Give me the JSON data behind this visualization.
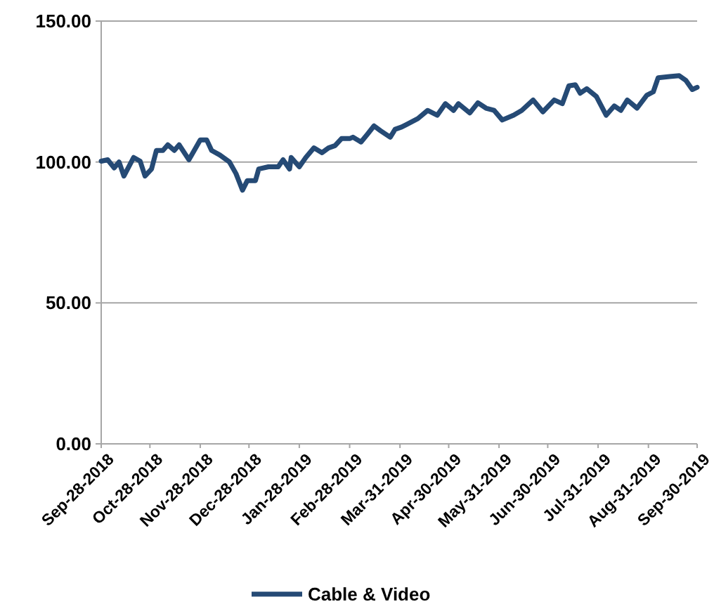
{
  "chart_data": {
    "type": "line",
    "x": [
      "2018-09-28",
      "2018-10-02",
      "2018-10-06",
      "2018-10-09",
      "2018-10-12",
      "2018-10-18",
      "2018-10-22",
      "2018-10-25",
      "2018-10-29",
      "2018-11-01",
      "2018-11-05",
      "2018-11-08",
      "2018-11-12",
      "2018-11-15",
      "2018-11-21",
      "2018-11-23",
      "2018-11-28",
      "2018-12-02",
      "2018-12-05",
      "2018-12-10",
      "2018-12-16",
      "2018-12-20",
      "2018-12-24",
      "2018-12-27",
      "2019-01-01",
      "2019-01-03",
      "2019-01-09",
      "2019-01-15",
      "2019-01-18",
      "2019-01-22",
      "2019-01-23",
      "2019-01-28",
      "2019-02-01",
      "2019-02-06",
      "2019-02-11",
      "2019-02-15",
      "2019-02-19",
      "2019-02-23",
      "2019-02-28",
      "2019-03-02",
      "2019-03-07",
      "2019-03-11",
      "2019-03-15",
      "2019-03-19",
      "2019-03-25",
      "2019-03-28",
      "2019-04-01",
      "2019-04-04",
      "2019-04-11",
      "2019-04-17",
      "2019-04-23",
      "2019-04-28",
      "2019-05-03",
      "2019-05-06",
      "2019-05-13",
      "2019-05-18",
      "2019-05-23",
      "2019-05-28",
      "2019-06-02",
      "2019-06-09",
      "2019-06-14",
      "2019-06-21",
      "2019-06-27",
      "2019-07-04",
      "2019-07-09",
      "2019-07-13",
      "2019-07-17",
      "2019-07-20",
      "2019-07-24",
      "2019-07-30",
      "2019-08-05",
      "2019-08-10",
      "2019-08-14",
      "2019-08-18",
      "2019-08-24",
      "2019-08-30",
      "2019-09-03",
      "2019-09-06",
      "2019-09-13",
      "2019-09-19",
      "2019-09-23",
      "2019-09-27",
      "2019-09-30"
    ],
    "series": [
      {
        "name": "Cable & Video",
        "color": "#254a75",
        "values": [
          100.3,
          100.8,
          97.9,
          100,
          95,
          101.6,
          100.3,
          95,
          97.5,
          104.1,
          104.1,
          106.1,
          104.1,
          106.1,
          100.8,
          102.8,
          107.8,
          107.8,
          104.1,
          102.5,
          100,
          95.9,
          90,
          93.4,
          93.4,
          97.5,
          98.3,
          98.3,
          100.8,
          97.5,
          101.6,
          98.3,
          101.6,
          105,
          103.3,
          105,
          105.8,
          108.3,
          108.3,
          108.8,
          107.1,
          109.9,
          112.8,
          111.1,
          108.8,
          111.6,
          112.4,
          113.3,
          115.4,
          118.3,
          116.6,
          120.7,
          118.3,
          120.7,
          117.4,
          121,
          119.1,
          118.3,
          114.9,
          116.6,
          118.3,
          122,
          117.8,
          122,
          120.7,
          127,
          127.4,
          124.4,
          126,
          123.2,
          116.6,
          119.9,
          118.3,
          122,
          119.1,
          123.7,
          124.9,
          129.9,
          130.3,
          130.6,
          129,
          125.7,
          126.5
        ]
      }
    ],
    "xlim": [
      "2018-09-28",
      "2019-09-30"
    ],
    "xticks": [
      {
        "value": "2018-09-28",
        "label": "Sep-28-2018"
      },
      {
        "value": "2018-10-28",
        "label": "Oct-28-2018"
      },
      {
        "value": "2018-11-28",
        "label": "Nov-28-2018"
      },
      {
        "value": "2018-12-28",
        "label": "Dec-28-2018"
      },
      {
        "value": "2019-01-28",
        "label": "Jan-28-2019"
      },
      {
        "value": "2019-02-28",
        "label": "Feb-28-2019"
      },
      {
        "value": "2019-03-31",
        "label": "Mar-31-2019"
      },
      {
        "value": "2019-04-30",
        "label": "Apr-30-2019"
      },
      {
        "value": "2019-05-31",
        "label": "May-31-2019"
      },
      {
        "value": "2019-06-30",
        "label": "Jun-30-2019"
      },
      {
        "value": "2019-07-31",
        "label": "Jul-31-2019"
      },
      {
        "value": "2019-08-31",
        "label": "Aug-31-2019"
      },
      {
        "value": "2019-09-30",
        "label": "Sep-30-2019"
      }
    ],
    "ylim": [
      0,
      150
    ],
    "yticks": [
      {
        "value": 0,
        "label": "0.00"
      },
      {
        "value": 50,
        "label": "50.00"
      },
      {
        "value": 100,
        "label": "100.00"
      },
      {
        "value": 150,
        "label": "150.00"
      }
    ],
    "grid": "y",
    "legend": "bottom",
    "marker": "none",
    "line_style": "solid"
  }
}
